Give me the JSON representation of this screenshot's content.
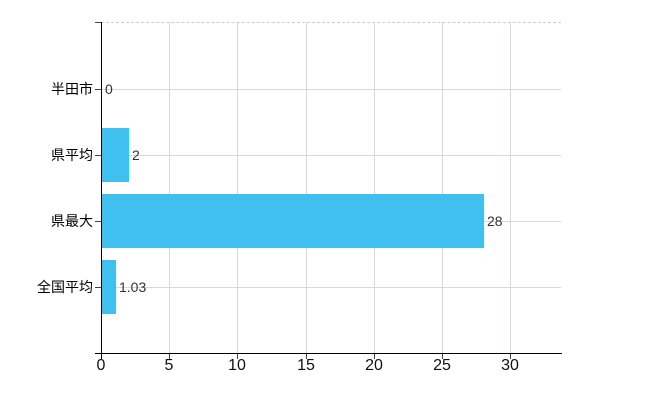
{
  "chart": {
    "background": "#ffffff",
    "bar_color": "#3FC0EF",
    "gridline_color": "#d6dad6",
    "top_border_color": "#cccccc",
    "axis_color": "#000000",
    "tick_color": "#444444",
    "category_label_color": "#000000",
    "x_tick_label_color": "#111111",
    "value_label_color": "#333333"
  },
  "chart_data": {
    "type": "bar",
    "orientation": "horizontal",
    "title": "",
    "xlabel": "",
    "ylabel": "",
    "categories": [
      "半田市",
      "県平均",
      "県最大",
      "全国平均"
    ],
    "values": [
      0,
      2,
      28,
      1.03
    ],
    "value_labels": [
      "0",
      "2",
      "28",
      "1.03"
    ],
    "x_ticks": [
      0,
      5,
      10,
      15,
      20,
      25,
      30
    ],
    "xlim": [
      0,
      33.7
    ],
    "grid": true,
    "legend": false
  }
}
